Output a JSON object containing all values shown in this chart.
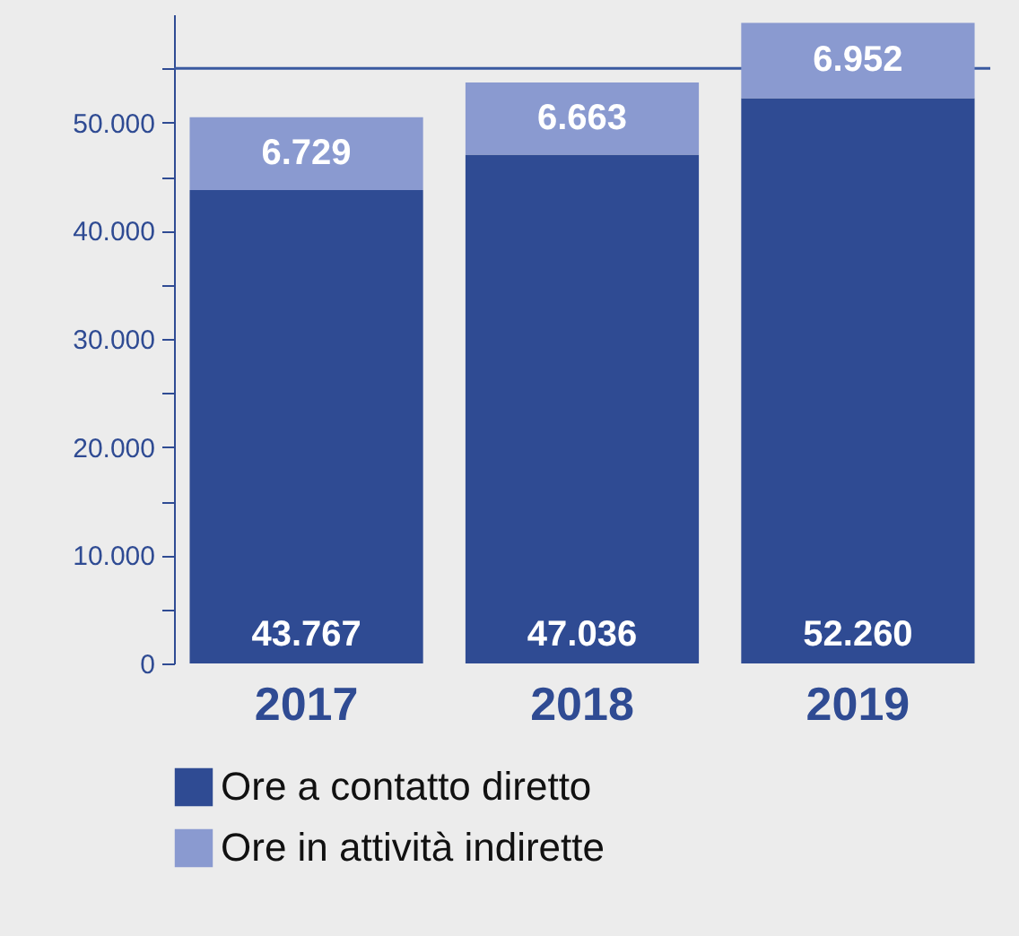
{
  "chart_data": {
    "type": "bar",
    "categories": [
      "2017",
      "2018",
      "2019"
    ],
    "stacked": true,
    "series": [
      {
        "name": "Ore a contatto diretto",
        "color": "#2f4b93",
        "values": [
          43767,
          47036,
          52260
        ],
        "value_labels": [
          "43.767",
          "47.036",
          "52.260"
        ]
      },
      {
        "name": "Ore in attività indirette",
        "color": "#8a9ad0",
        "values": [
          6729,
          6663,
          6952
        ],
        "value_labels": [
          "6.729",
          "6.663",
          "6.952"
        ]
      }
    ],
    "ylim": [
      0,
      60000
    ],
    "yticks": [
      {
        "value": 0,
        "label": "0"
      },
      {
        "value": 5000,
        "label": null
      },
      {
        "value": 10000,
        "label": "10.000"
      },
      {
        "value": 15000,
        "label": null
      },
      {
        "value": 20000,
        "label": "20.000"
      },
      {
        "value": 25000,
        "label": null
      },
      {
        "value": 30000,
        "label": "30.000"
      },
      {
        "value": 35000,
        "label": null
      },
      {
        "value": 40000,
        "label": "40.000"
      },
      {
        "value": 45000,
        "label": null
      },
      {
        "value": 50000,
        "label": "50.000"
      },
      {
        "value": 55000,
        "label": null
      }
    ],
    "ref_lines": [
      {
        "axis": "y",
        "value": 55000,
        "label": null,
        "color": "#3a5aa0"
      }
    ],
    "legend": "bottom",
    "grid": false
  }
}
